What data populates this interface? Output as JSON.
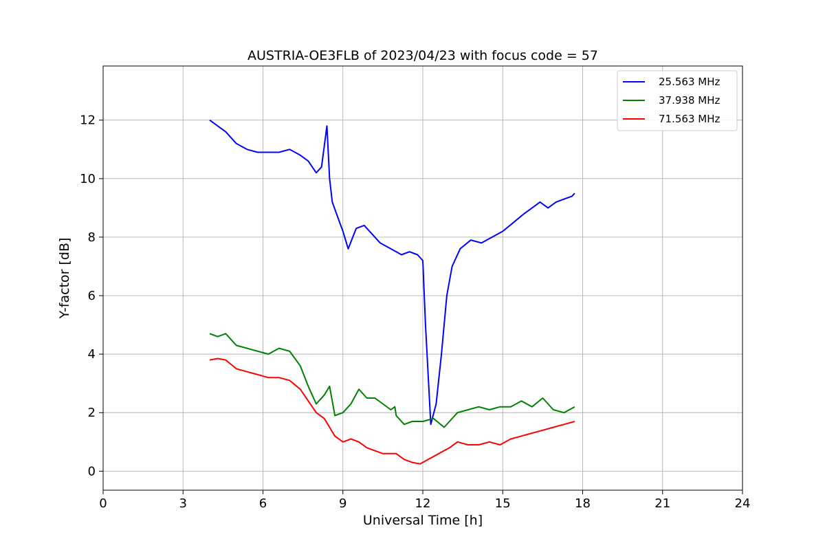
{
  "chart_data": {
    "type": "line",
    "title": "AUSTRIA-OE3FLB of 2023/04/23 with focus code = 57",
    "xlabel": "Universal Time [h]",
    "ylabel": "Y-factor [dB]",
    "xlim": [
      0,
      24
    ],
    "ylim": [
      -0.65,
      13.85
    ],
    "xticks": [
      0,
      3,
      6,
      9,
      12,
      15,
      18,
      21,
      24
    ],
    "xtick_labels": [
      "0",
      "3",
      "6",
      "9",
      "12",
      "15",
      "18",
      "21",
      "24"
    ],
    "yticks": [
      0,
      2,
      4,
      6,
      8,
      10,
      12
    ],
    "ytick_labels": [
      "0",
      "2",
      "4",
      "6",
      "8",
      "10",
      "12"
    ],
    "grid": true,
    "legend_position": "top-right",
    "series": [
      {
        "name": "25.563 MHz",
        "color": "#0000ff",
        "x": [
          4.0,
          4.3,
          4.6,
          5.0,
          5.4,
          5.8,
          6.2,
          6.6,
          7.0,
          7.4,
          7.7,
          8.0,
          8.2,
          8.4,
          8.5,
          8.6,
          8.8,
          9.0,
          9.2,
          9.5,
          9.8,
          10.1,
          10.4,
          10.8,
          11.2,
          11.5,
          11.8,
          12.0,
          12.1,
          12.3,
          12.5,
          12.7,
          12.9,
          13.1,
          13.4,
          13.8,
          14.2,
          14.6,
          15.0,
          15.4,
          15.8,
          16.1,
          16.4,
          16.7,
          17.0,
          17.3,
          17.6,
          17.7
        ],
        "y": [
          12.0,
          11.8,
          11.6,
          11.2,
          11.0,
          10.9,
          10.9,
          10.9,
          11.0,
          10.8,
          10.6,
          10.2,
          10.4,
          11.8,
          10.0,
          9.2,
          8.7,
          8.2,
          7.6,
          8.3,
          8.4,
          8.1,
          7.8,
          7.6,
          7.4,
          7.5,
          7.4,
          7.2,
          5.0,
          1.6,
          2.3,
          4.0,
          6.0,
          7.0,
          7.6,
          7.9,
          7.8,
          8.0,
          8.2,
          8.5,
          8.8,
          9.0,
          9.2,
          9.0,
          9.2,
          9.3,
          9.4,
          9.5
        ]
      },
      {
        "name": "37.938 MHz",
        "color": "#008000",
        "x": [
          4.0,
          4.3,
          4.6,
          5.0,
          5.4,
          5.8,
          6.2,
          6.6,
          7.0,
          7.4,
          7.7,
          8.0,
          8.3,
          8.5,
          8.7,
          9.0,
          9.3,
          9.6,
          9.9,
          10.2,
          10.5,
          10.8,
          10.95,
          11.0,
          11.3,
          11.6,
          12.0,
          12.4,
          12.8,
          13.0,
          13.3,
          13.7,
          14.1,
          14.5,
          14.9,
          15.3,
          15.7,
          16.1,
          16.5,
          16.9,
          17.3,
          17.7
        ],
        "y": [
          4.7,
          4.6,
          4.7,
          4.3,
          4.2,
          4.1,
          4.0,
          4.2,
          4.1,
          3.6,
          2.9,
          2.3,
          2.6,
          2.9,
          1.9,
          2.0,
          2.3,
          2.8,
          2.5,
          2.5,
          2.3,
          2.1,
          2.2,
          1.9,
          1.6,
          1.7,
          1.7,
          1.8,
          1.5,
          1.7,
          2.0,
          2.1,
          2.2,
          2.1,
          2.2,
          2.2,
          2.4,
          2.2,
          2.5,
          2.1,
          2.0,
          2.2
        ]
      },
      {
        "name": "71.563 MHz",
        "color": "#ff0000",
        "x": [
          4.0,
          4.3,
          4.6,
          5.0,
          5.4,
          5.8,
          6.2,
          6.6,
          7.0,
          7.4,
          7.7,
          8.0,
          8.3,
          8.5,
          8.7,
          9.0,
          9.3,
          9.6,
          9.9,
          10.2,
          10.5,
          10.8,
          11.0,
          11.3,
          11.6,
          11.9,
          12.2,
          12.6,
          13.0,
          13.3,
          13.7,
          14.1,
          14.5,
          14.9,
          15.3,
          15.7,
          16.1,
          16.5,
          16.9,
          17.3,
          17.7
        ],
        "y": [
          3.8,
          3.85,
          3.8,
          3.5,
          3.4,
          3.3,
          3.2,
          3.2,
          3.1,
          2.8,
          2.4,
          2.0,
          1.8,
          1.5,
          1.2,
          1.0,
          1.1,
          1.0,
          0.8,
          0.7,
          0.6,
          0.6,
          0.6,
          0.4,
          0.3,
          0.25,
          0.4,
          0.6,
          0.8,
          1.0,
          0.9,
          0.9,
          1.0,
          0.9,
          1.1,
          1.2,
          1.3,
          1.4,
          1.5,
          1.6,
          1.7
        ]
      }
    ]
  }
}
